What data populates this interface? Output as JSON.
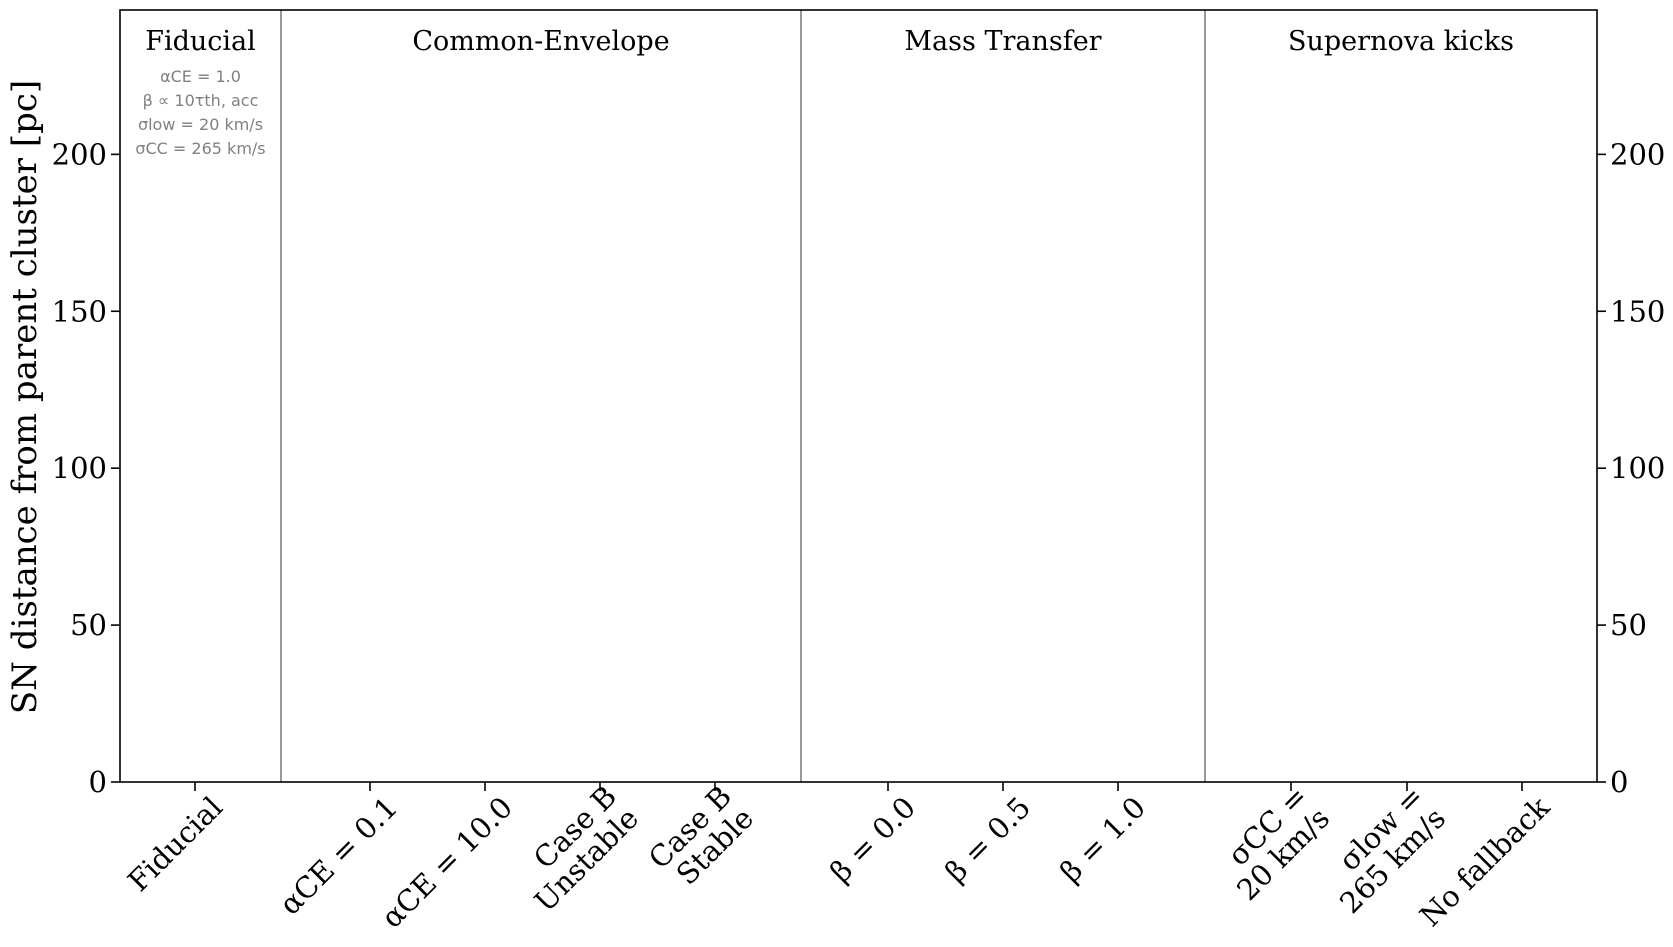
{
  "chart_data": {
    "type": "scatter",
    "ylabel": "SN distance from parent cluster [pc]",
    "ylim": [
      0,
      246
    ],
    "yticks": [
      0,
      50,
      100,
      150,
      200
    ],
    "ytick_labels": [
      "0",
      "50",
      "100",
      "150",
      "200"
    ],
    "mirror_y_axis_right": true,
    "grid": false,
    "categories": [
      {
        "lines": [
          "Fiducial"
        ]
      },
      {
        "lines": [
          "αCE = 0.1"
        ]
      },
      {
        "lines": [
          "αCE = 10.0"
        ]
      },
      {
        "lines": [
          "Case B",
          "Unstable"
        ]
      },
      {
        "lines": [
          "Case B",
          "Stable"
        ]
      },
      {
        "lines": [
          "β = 0.0"
        ]
      },
      {
        "lines": [
          "β = 0.5"
        ]
      },
      {
        "lines": [
          "β = 1.0"
        ]
      },
      {
        "lines": [
          "σCC =",
          "20 km/s"
        ]
      },
      {
        "lines": [
          "σlow =",
          "265 km/s"
        ]
      },
      {
        "lines": [
          "No fallback"
        ]
      }
    ],
    "groups": [
      {
        "title": "Fiducial",
        "members": [
          0
        ]
      },
      {
        "title": "Common-Envelope",
        "members": [
          1,
          2,
          3,
          4
        ]
      },
      {
        "title": "Mass Transfer",
        "members": [
          5,
          6,
          7
        ]
      },
      {
        "title": "Supernova kicks",
        "members": [
          8,
          9,
          10
        ]
      }
    ],
    "fiducial_params": [
      "αCE = 1.0",
      "β ∝ 10τth, acc",
      "σlow = 20 km/s",
      "σCC = 265 km/s"
    ],
    "series": []
  },
  "colors": {
    "axis": "#000000",
    "divider": "#555555",
    "annotation": "#808080"
  }
}
